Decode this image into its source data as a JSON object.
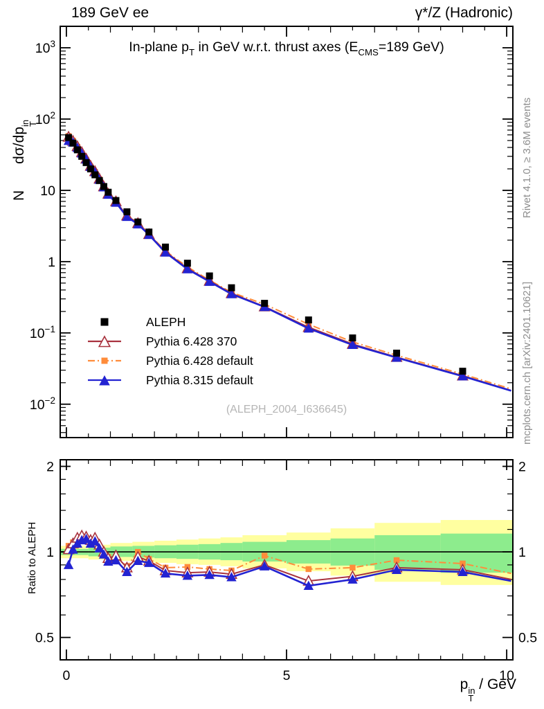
{
  "header": {
    "left": "189 GeV ee",
    "right": "γ*/Z (Hadronic)"
  },
  "title": {
    "p1": "In-plane p",
    "s1": "T",
    "p2": " in GeV w.r.t. thrust axes (E",
    "s2": "CMS",
    "p3": "=189 GeV)"
  },
  "y_axis_label": {
    "n": "N",
    "base": "dσ/dp",
    "sup": "in",
    "sub": "T"
  },
  "ratio_axis_label": "Ratio to ALEPH",
  "x_axis_label": {
    "base": "p",
    "sup": "in",
    "sub": "T",
    "rest": " / GeV"
  },
  "notes": {
    "right_top": "Rivet 4.1.0, ≥ 3.6M events",
    "right_bottom": "mcplots.cern.ch [arXiv:2401.10621]"
  },
  "watermark": "(ALEPH_2004_I636645)",
  "legend": {
    "items": [
      {
        "label": "ALEPH"
      },
      {
        "label": "Pythia 6.428 370"
      },
      {
        "label": "Pythia 6.428 default"
      },
      {
        "label": "Pythia 8.315 default"
      }
    ]
  },
  "chart_data": {
    "type": "line",
    "title": "In-plane pT in GeV w.r.t. thrust axes (ECMS=189 GeV)",
    "xlabel": "pT^in / GeV",
    "ylabel": "N dσ/dpT^in",
    "ylabel_ratio": "Ratio to ALEPH",
    "x_log": false,
    "y_log": true,
    "x_range": [
      -0.14,
      10.14
    ],
    "main_y_range": [
      0.0034,
      2000
    ],
    "ratio_y_range": [
      0.417,
      2.11
    ],
    "x_major_ticks": [
      0,
      5,
      10
    ],
    "x_minor_step": 0.5,
    "main_y_decades": [
      3,
      2,
      1,
      0,
      -1,
      -2
    ],
    "ratio_y_major_ticks": [
      2,
      1,
      0.5
    ],
    "ratio_y_minor_ticks": [
      0.6,
      0.7,
      0.8,
      0.9,
      1.2,
      1.4,
      1.6,
      1.8
    ],
    "x": [
      0.05,
      0.15,
      0.25,
      0.35,
      0.45,
      0.55,
      0.65,
      0.75,
      0.85,
      0.95,
      1.125,
      1.375,
      1.625,
      1.875,
      2.25,
      2.75,
      3.25,
      3.75,
      4.5,
      5.5,
      6.5,
      7.5,
      9.0
    ],
    "aleph_values": [
      55,
      46,
      37,
      30,
      24.5,
      20,
      16.5,
      13.7,
      11.3,
      9.4,
      7.2,
      5.0,
      3.6,
      2.6,
      1.6,
      0.95,
      0.63,
      0.43,
      0.26,
      0.152,
      0.085,
      0.052,
      0.029
    ],
    "aleph_tail_value": 0.0195,
    "tail_x": 10.1,
    "series": [
      {
        "name": "Pythia 6.428 370",
        "color": "#a8323e",
        "line": "solid",
        "marker": "triangle-open",
        "ratio": [
          1.02,
          1.07,
          1.12,
          1.14,
          1.13,
          1.1,
          1.12,
          1.06,
          1.0,
          0.95,
          0.97,
          0.88,
          0.96,
          0.93,
          0.86,
          0.845,
          0.85,
          0.835,
          0.9,
          0.79,
          0.82,
          0.88,
          0.865
        ],
        "ratio_tail": 0.8
      },
      {
        "name": "Pythia 6.428 default",
        "color": "#ff8c3a",
        "line": "dash-dot",
        "marker": "square",
        "ratio": [
          1.05,
          1.08,
          1.1,
          1.1,
          1.09,
          1.07,
          1.09,
          1.04,
          0.99,
          0.96,
          0.955,
          0.89,
          1.0,
          0.945,
          0.88,
          0.885,
          0.87,
          0.86,
          0.97,
          0.87,
          0.88,
          0.935,
          0.91
        ],
        "ratio_tail": 0.84
      },
      {
        "name": "Pythia 8.315 default",
        "color": "#2323d2",
        "line": "solid",
        "marker": "triangle",
        "ratio": [
          0.9,
          1.02,
          1.07,
          1.1,
          1.11,
          1.07,
          1.09,
          1.03,
          0.98,
          0.925,
          0.935,
          0.85,
          0.93,
          0.915,
          0.84,
          0.825,
          0.83,
          0.815,
          0.89,
          0.76,
          0.8,
          0.865,
          0.85
        ],
        "ratio_tail": 0.79
      }
    ],
    "aleph_color": "#000000",
    "band_colors": {
      "yellow": "#ffffa0",
      "green": "#8dec8d"
    },
    "bands": [
      {
        "x0": -0.14,
        "x1": 0.5,
        "y": [
          0.95,
          1.05
        ],
        "g": [
          0.975,
          1.025
        ]
      },
      {
        "x0": 0.5,
        "x1": 1.0,
        "y": [
          0.94,
          1.06
        ],
        "g": [
          0.965,
          1.035
        ]
      },
      {
        "x0": 1.0,
        "x1": 1.5,
        "y": [
          0.93,
          1.075
        ],
        "g": [
          0.96,
          1.045
        ]
      },
      {
        "x0": 1.5,
        "x1": 2.0,
        "y": [
          0.92,
          1.085
        ],
        "g": [
          0.955,
          1.05
        ]
      },
      {
        "x0": 2.0,
        "x1": 2.5,
        "y": [
          0.915,
          1.095
        ],
        "g": [
          0.95,
          1.055
        ]
      },
      {
        "x0": 2.5,
        "x1": 3.0,
        "y": [
          0.905,
          1.105
        ],
        "g": [
          0.945,
          1.06
        ]
      },
      {
        "x0": 3.0,
        "x1": 3.5,
        "y": [
          0.9,
          1.115
        ],
        "g": [
          0.94,
          1.065
        ]
      },
      {
        "x0": 3.5,
        "x1": 4.0,
        "y": [
          0.89,
          1.125
        ],
        "g": [
          0.935,
          1.075
        ]
      },
      {
        "x0": 4.0,
        "x1": 5.0,
        "y": [
          0.875,
          1.145
        ],
        "g": [
          0.925,
          1.085
        ]
      },
      {
        "x0": 5.0,
        "x1": 6.0,
        "y": [
          0.855,
          1.17
        ],
        "g": [
          0.91,
          1.1
        ]
      },
      {
        "x0": 6.0,
        "x1": 7.0,
        "y": [
          0.825,
          1.21
        ],
        "g": [
          0.895,
          1.115
        ]
      },
      {
        "x0": 7.0,
        "x1": 8.5,
        "y": [
          0.785,
          1.265
        ],
        "g": [
          0.865,
          1.145
        ]
      },
      {
        "x0": 8.5,
        "x1": 10.14,
        "y": [
          0.765,
          1.295
        ],
        "g": [
          0.845,
          1.16
        ]
      }
    ]
  }
}
